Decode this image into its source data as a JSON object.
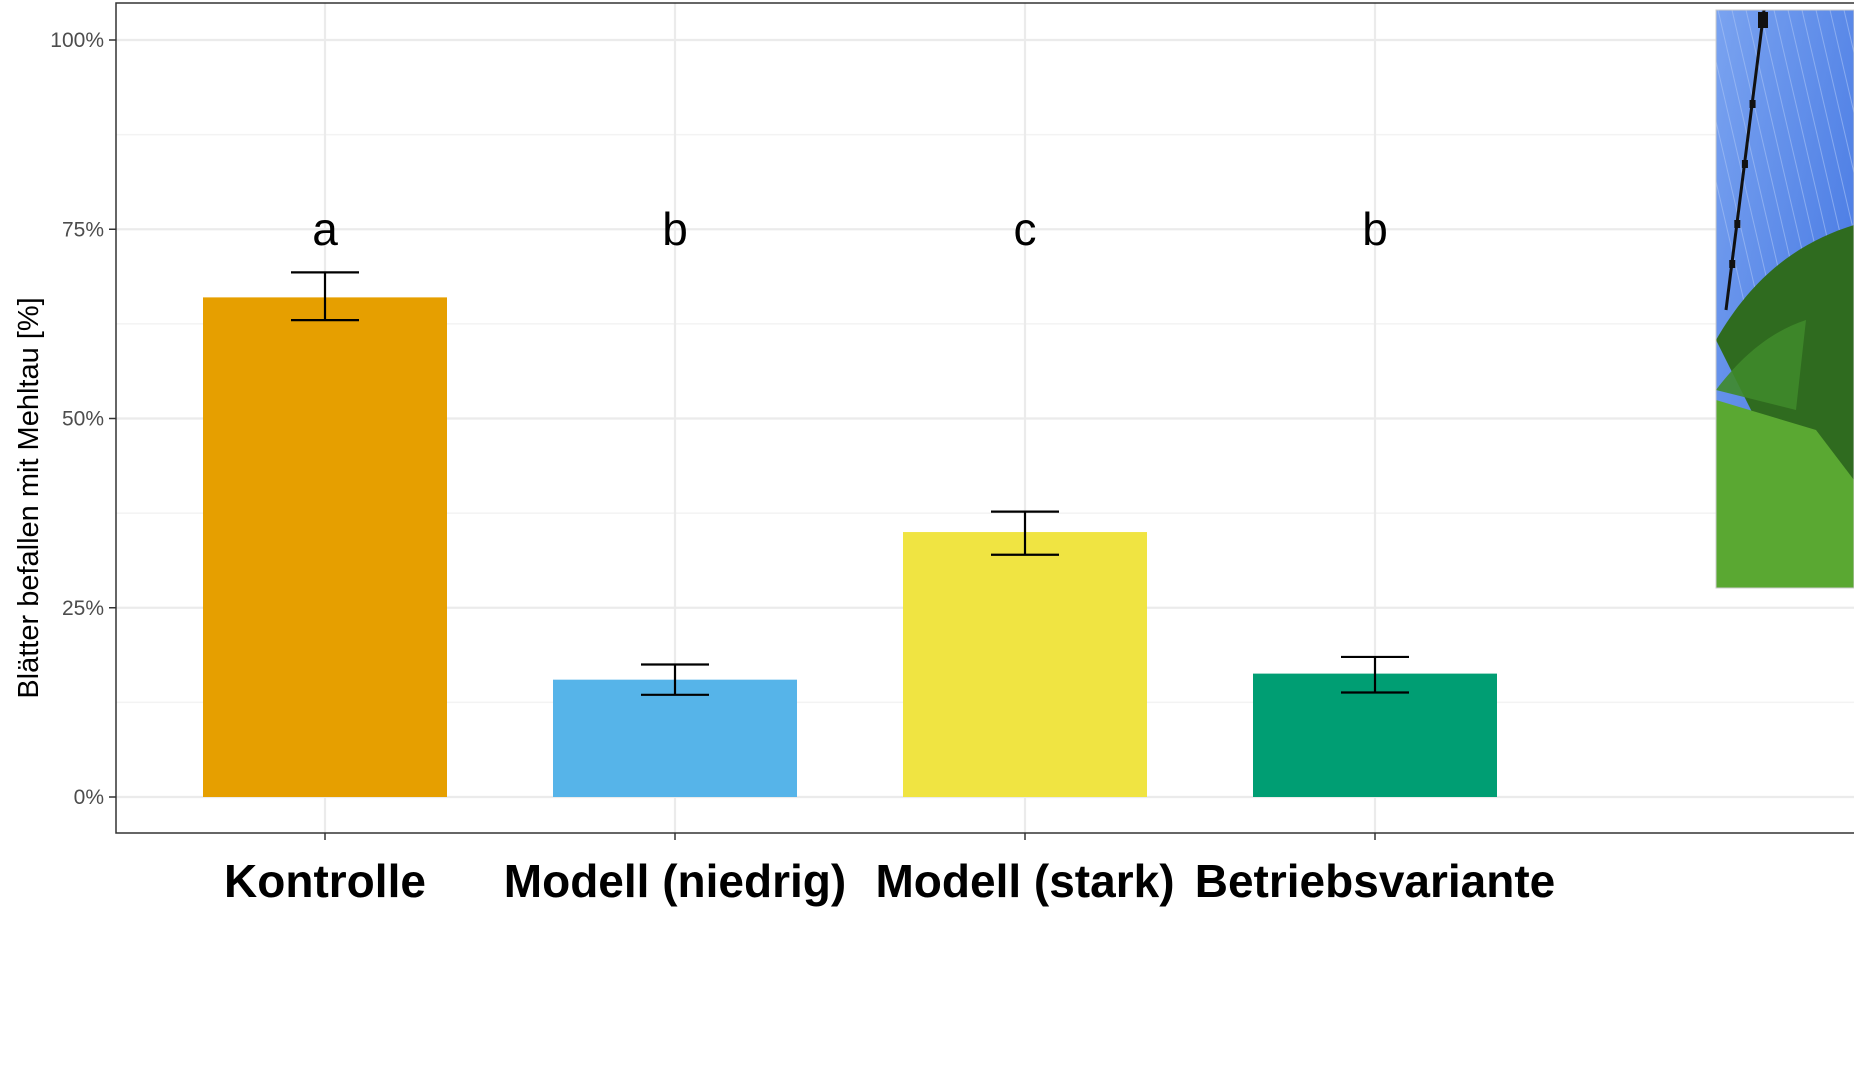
{
  "chart_data": {
    "type": "bar",
    "title": "",
    "xlabel": "",
    "ylabel": "Blätter befallen mit Mehltau [%]",
    "ylim": [
      0,
      105
    ],
    "y_ticks": [
      0,
      25,
      50,
      75,
      100
    ],
    "y_tick_labels": [
      "0%",
      "25%",
      "50%",
      "75%",
      "100%"
    ],
    "grid": true,
    "categories": [
      "Kontrolle",
      "Modell (niedrig)",
      "Modell (stark)",
      "Betriebsvariante"
    ],
    "values": [
      66,
      15.5,
      35,
      16.3
    ],
    "error_low": [
      63,
      13.5,
      32,
      13.8
    ],
    "error_high": [
      69.3,
      17.5,
      37.7,
      18.5
    ],
    "significance_letters": [
      "a",
      "b",
      "c",
      "b"
    ],
    "colors": [
      "#E69F00",
      "#56B4E9",
      "#F0E442",
      "#009E73"
    ],
    "grid_color": "#ebebeb",
    "panel_border_color": "#333333"
  },
  "inset_photo": {
    "icon": "orchard-hail-net-photo",
    "colors": {
      "net": "#3b6fe0",
      "net_light": "#7aa3f0",
      "foliage": "#2f6b1f",
      "grass": "#5aa832"
    }
  }
}
